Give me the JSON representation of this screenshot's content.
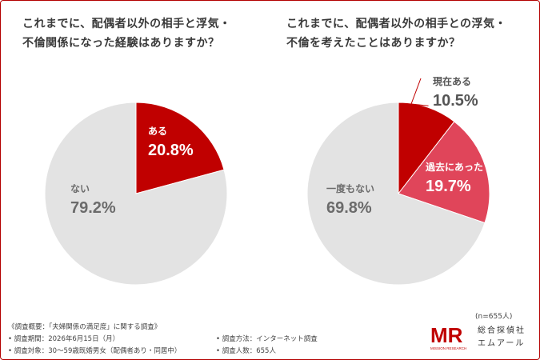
{
  "chart_data": [
    {
      "type": "pie",
      "title": "これまでに、配偶者以外の相手と浮気・\n不倫関係になった経験はありますか？",
      "slices": [
        {
          "label": "ある",
          "value": 20.8,
          "color": "#c00000"
        },
        {
          "label": "ない",
          "value": 79.2,
          "color": "#e3e3e3"
        }
      ]
    },
    {
      "type": "pie",
      "title": "これまでに、配偶者以外の相手との浮気・\n不倫を考えたことはありますか？",
      "slices": [
        {
          "label": "現在ある",
          "value": 10.5,
          "color": "#c00000"
        },
        {
          "label": "過去にあった",
          "value": 19.7,
          "color": "#e0455a"
        },
        {
          "label": "一度もない",
          "value": 69.8,
          "color": "#e3e3e3"
        }
      ]
    }
  ],
  "footer": {
    "overview": "《調査概要：「夫婦関係の満足度」に関する調査》",
    "period": "• 調査期間：2026年6月15日（月）",
    "method": "• 調査方法：インターネット調査",
    "target": "• 調査対象：30〜59歳既婚男女（配偶者あり・同居中）",
    "count": "• 調査人数：655人"
  },
  "sample_size": "(n=655人)",
  "logo": {
    "letters": "MR",
    "tagline": "MISSION RESEARCH"
  },
  "company": {
    "line1": "総合探偵社",
    "line2": "エムアール"
  }
}
